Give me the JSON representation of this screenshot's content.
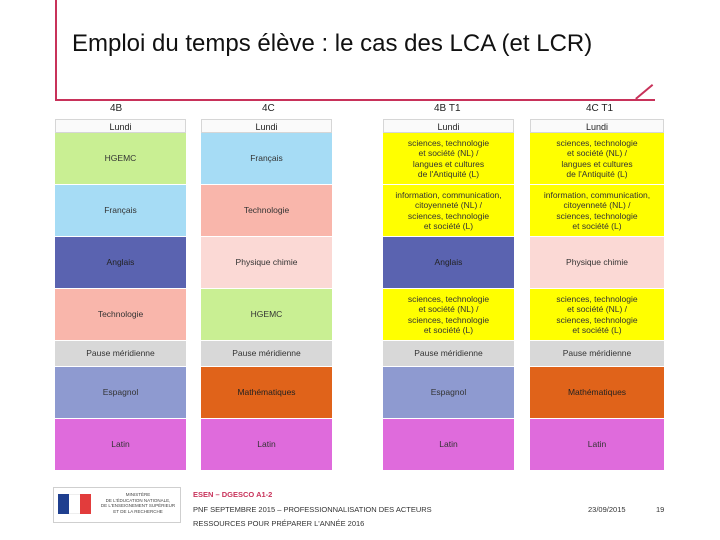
{
  "slide": {
    "title": "Emploi du temps élève : le cas des LCA (et LCR)",
    "accent_color": "#c8325a"
  },
  "columns": [
    {
      "header": "4B",
      "day": "Lundi",
      "cells": [
        {
          "lines": [
            "HGEMC"
          ],
          "color": "#c9ef93"
        },
        {
          "lines": [
            "Français"
          ],
          "color": "#a6dcf5"
        },
        {
          "lines": [
            "Anglais"
          ],
          "color": "#5a63b0"
        },
        {
          "lines": [
            "Technologie"
          ],
          "color": "#f9b6ab"
        },
        {
          "lines": [
            "Pause méridienne"
          ],
          "color": "#d8d8d8"
        },
        {
          "lines": [
            "Espagnol"
          ],
          "color": "#8e9ad0"
        },
        {
          "lines": [
            "Latin"
          ],
          "color": "#df6bdc"
        }
      ]
    },
    {
      "header": "4C",
      "day": "Lundi",
      "cells": [
        {
          "lines": [
            "Français"
          ],
          "color": "#a6dcf5"
        },
        {
          "lines": [
            "Technologie"
          ],
          "color": "#f9b6ab"
        },
        {
          "lines": [
            "Physique chimie"
          ],
          "color": "#fbd9d5"
        },
        {
          "lines": [
            "HGEMC"
          ],
          "color": "#c9ef93"
        },
        {
          "lines": [
            "Pause méridienne"
          ],
          "color": "#d8d8d8"
        },
        {
          "lines": [
            "Mathématiques"
          ],
          "color": "#e0631a"
        },
        {
          "lines": [
            "Latin"
          ],
          "color": "#df6bdc"
        }
      ]
    },
    {
      "header": "4B T1",
      "day": "Lundi",
      "cells": [
        {
          "lines": [
            "sciences, technologie",
            "et société (NL) /",
            "langues et cultures",
            "de l'Antiquité (L)"
          ],
          "color": "#ffff00"
        },
        {
          "lines": [
            "information, communication,",
            "citoyenneté (NL) /",
            "sciences, technologie",
            "et société (L)"
          ],
          "color": "#ffff00"
        },
        {
          "lines": [
            "Anglais"
          ],
          "color": "#5a63b0"
        },
        {
          "lines": [
            "sciences, technologie",
            "et société (NL) /",
            "sciences, technologie",
            "et société (L)"
          ],
          "color": "#ffff00"
        },
        {
          "lines": [
            "Pause méridienne"
          ],
          "color": "#d8d8d8"
        },
        {
          "lines": [
            "Espagnol"
          ],
          "color": "#8e9ad0"
        },
        {
          "lines": [
            "Latin"
          ],
          "color": "#df6bdc"
        }
      ]
    },
    {
      "header": "4C T1",
      "day": "Lundi",
      "cells": [
        {
          "lines": [
            "sciences, technologie",
            "et société (NL) /",
            "langues et cultures",
            "de l'Antiquité (L)"
          ],
          "color": "#ffff00"
        },
        {
          "lines": [
            "information, communication,",
            "citoyenneté (NL) /",
            "sciences, technologie",
            "et société (L)"
          ],
          "color": "#ffff00"
        },
        {
          "lines": [
            "Physique chimie"
          ],
          "color": "#fbd9d5"
        },
        {
          "lines": [
            "sciences, technologie",
            "et société (NL) /",
            "sciences, technologie",
            "et société (L)"
          ],
          "color": "#ffff00"
        },
        {
          "lines": [
            "Pause méridienne"
          ],
          "color": "#d8d8d8"
        },
        {
          "lines": [
            "Mathématiques"
          ],
          "color": "#e0631a"
        },
        {
          "lines": [
            "Latin"
          ],
          "color": "#df6bdc"
        }
      ]
    }
  ],
  "footer": {
    "org": "ESEN – DGESCO A1-2",
    "line2": "PNF SEPTEMBRE 2015 – PROFESSIONNALISATION DES ACTEURS",
    "line3": "RESSOURCES POUR PRÉPARER L'ANNÉE 2016",
    "date": "23/09/2015",
    "page": "19",
    "logo_text": [
      "MINISTÈRE",
      "DE L'ÉDUCATION NATIONALE,",
      "DE L'ENSEIGNEMENT SUPÉRIEUR",
      "ET DE LA RECHERCHE"
    ]
  }
}
